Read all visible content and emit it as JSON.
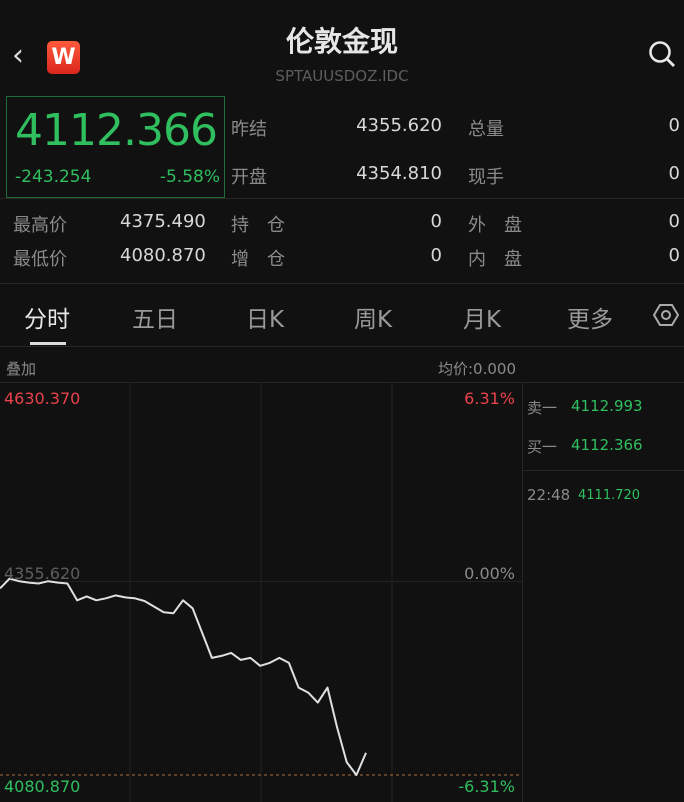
{
  "header": {
    "title": "伦敦金现",
    "code": "SPTAUUSDOZ.IDC",
    "back_icon": "chevron-left-icon",
    "logo_letter": "W",
    "search_icon": "search-icon"
  },
  "quote": {
    "price": "4112.366",
    "change": "-243.254",
    "change_pct": "-5.58%",
    "fields": [
      {
        "label": "昨结",
        "value": "4355.620"
      },
      {
        "label": "总量",
        "value": "0"
      },
      {
        "label": "开盘",
        "value": "4354.810"
      },
      {
        "label": "现手",
        "value": "0"
      },
      {
        "label": "最高价",
        "value": "4375.490"
      },
      {
        "label": "持　仓",
        "value": "0"
      },
      {
        "label": "外　盘",
        "value": "0"
      },
      {
        "label": "最低价",
        "value": "4080.870"
      },
      {
        "label": "增　仓",
        "value": "0"
      },
      {
        "label": "内　盘",
        "value": "0"
      }
    ]
  },
  "tabs": [
    "分时",
    "五日",
    "日K",
    "周K",
    "月K",
    "更多"
  ],
  "chart_header": {
    "overlay": "叠加",
    "avg_price": "均价:0.000"
  },
  "chart_data": {
    "type": "line",
    "title": "",
    "ylim": [
      4080.87,
      4630.37
    ],
    "y_labels": {
      "top": "4630.370",
      "mid": "4355.620",
      "bottom": "4080.870"
    },
    "pct_labels": {
      "top": "6.31%",
      "mid": "0.00%",
      "bottom": "-6.31%"
    },
    "reference_price": 4355.62,
    "low_line": 4080.87,
    "line_color": "#e0e0e0",
    "series": [
      {
        "values": [
          4345.8,
          4359.8,
          4356,
          4354,
          4352.8,
          4356,
          4354,
          4352.8,
          4328.9,
          4334.5,
          4328.9,
          4331.7,
          4335.9,
          4333,
          4331.7,
          4328,
          4320,
          4312,
          4310.5,
          4328.9,
          4317.6,
          4282.3,
          4247.1,
          4250,
          4254.2,
          4244.3,
          4247.1,
          4235.9,
          4240.1,
          4247.1,
          4240.1,
          4204.9,
          4197.8,
          4183.7,
          4204.9,
          4148.5,
          4099.2,
          4080.87,
          4112.37
        ]
      }
    ]
  },
  "order_book": {
    "sell_label": "卖一",
    "sell_price": "4112.993",
    "buy_label": "买一",
    "buy_price": "4112.366",
    "tick_time": "22:48",
    "tick_price": "4111.720"
  },
  "colors": {
    "up": "#e8424a",
    "down": "#2fbf5f",
    "background": "#111111"
  }
}
